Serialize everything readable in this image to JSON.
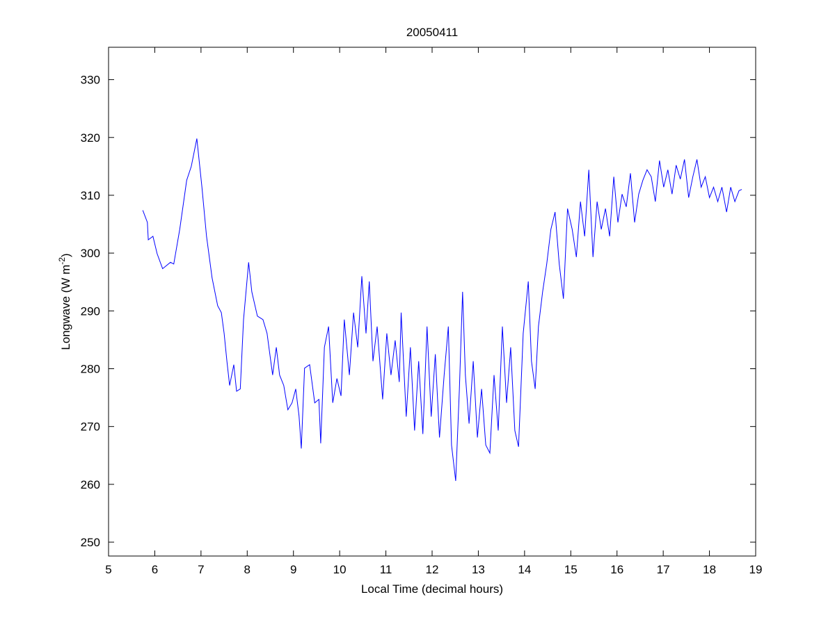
{
  "chart_data": {
    "type": "line",
    "title": "20050411",
    "xlabel": "Local Time (decimal hours)",
    "ylabel_main": "Longwave (W m",
    "ylabel_sup": "-2",
    "ylabel_close": ")",
    "xlim": [
      5,
      19
    ],
    "ylim": [
      247.6,
      335.6
    ],
    "xticks": [
      "5",
      "6",
      "7",
      "8",
      "9",
      "10",
      "11",
      "12",
      "13",
      "14",
      "15",
      "16",
      "17",
      "18",
      "19"
    ],
    "yticks": [
      "250",
      "260",
      "270",
      "280",
      "290",
      "300",
      "310",
      "320",
      "330"
    ],
    "grid": false,
    "series": [
      {
        "name": "Longwave",
        "color": "#0000ff",
        "x": [
          5.74,
          5.84,
          5.86,
          5.96,
          6.05,
          6.17,
          6.34,
          6.41,
          6.54,
          6.69,
          6.79,
          6.91,
          7.02,
          7.12,
          7.24,
          7.36,
          7.44,
          7.5,
          7.56,
          7.62,
          7.71,
          7.77,
          7.85,
          7.92,
          8.03,
          8.1,
          8.22,
          8.34,
          8.43,
          8.55,
          8.63,
          8.7,
          8.79,
          8.88,
          8.97,
          9.05,
          9.12,
          9.17,
          9.24,
          9.35,
          9.46,
          9.55,
          9.59,
          9.67,
          9.76,
          9.85,
          9.94,
          10.03,
          10.1,
          10.21,
          10.3,
          10.39,
          10.48,
          10.57,
          10.64,
          10.72,
          10.81,
          10.93,
          11.02,
          11.11,
          11.2,
          11.29,
          11.33,
          11.44,
          11.53,
          11.62,
          11.71,
          11.8,
          11.89,
          11.98,
          12.07,
          12.16,
          12.26,
          12.35,
          12.42,
          12.51,
          12.59,
          12.66,
          12.72,
          12.8,
          12.89,
          12.98,
          13.07,
          13.16,
          13.25,
          13.34,
          13.43,
          13.52,
          13.61,
          13.7,
          13.79,
          13.87,
          13.97,
          14.08,
          14.15,
          14.23,
          14.3,
          14.39,
          14.48,
          14.57,
          14.66,
          14.75,
          14.84,
          14.93,
          15.03,
          15.12,
          15.21,
          15.3,
          15.39,
          15.48,
          15.57,
          15.66,
          15.75,
          15.84,
          15.93,
          16.02,
          16.11,
          16.2,
          16.29,
          16.38,
          16.47,
          16.56,
          16.65,
          16.74,
          16.83,
          16.92,
          17.01,
          17.1,
          17.19,
          17.28,
          17.37,
          17.46,
          17.55,
          17.64,
          17.73,
          17.82,
          17.91,
          18.0,
          18.09,
          18.18,
          18.27,
          18.37,
          18.46,
          18.55,
          18.64,
          18.7
        ],
        "y": [
          307.4,
          305.3,
          302.3,
          302.9,
          299.9,
          297.3,
          298.4,
          298.1,
          304.1,
          312.6,
          315.0,
          319.8,
          311.4,
          302.9,
          295.7,
          290.9,
          289.7,
          286.1,
          281.3,
          277.1,
          280.7,
          276.1,
          276.5,
          288.5,
          298.4,
          293.3,
          289.1,
          288.5,
          286.1,
          278.9,
          283.7,
          278.9,
          277.1,
          272.9,
          274.1,
          276.5,
          271.9,
          266.2,
          280.1,
          280.7,
          274.1,
          274.7,
          267.1,
          283.7,
          287.3,
          274.1,
          278.3,
          275.3,
          288.5,
          278.9,
          289.7,
          283.7,
          296.0,
          286.1,
          295.1,
          281.3,
          287.3,
          274.7,
          286.1,
          278.9,
          284.9,
          277.7,
          289.7,
          271.7,
          283.7,
          269.3,
          281.3,
          268.7,
          287.3,
          271.7,
          282.5,
          268.1,
          278.9,
          287.3,
          266.8,
          260.6,
          276.5,
          293.3,
          278.9,
          270.5,
          281.3,
          268.1,
          276.5,
          266.8,
          265.4,
          278.9,
          269.3,
          287.3,
          274.1,
          283.7,
          269.3,
          266.5,
          286.1,
          295.1,
          281.3,
          276.5,
          287.3,
          293.3,
          298.1,
          304.1,
          307.1,
          298.1,
          292.1,
          307.7,
          304.1,
          299.3,
          308.9,
          302.9,
          314.4,
          299.3,
          308.9,
          304.1,
          307.7,
          302.9,
          313.2,
          305.3,
          310.2,
          308.0,
          313.8,
          305.3,
          310.2,
          312.6,
          314.4,
          313.2,
          308.9,
          316.0,
          311.4,
          314.4,
          310.2,
          315.2,
          312.8,
          316.2,
          309.6,
          313.2,
          316.2,
          311.4,
          313.2,
          309.6,
          311.4,
          308.9,
          311.4,
          307.1,
          311.4,
          308.9,
          310.8,
          311.0
        ]
      }
    ]
  }
}
